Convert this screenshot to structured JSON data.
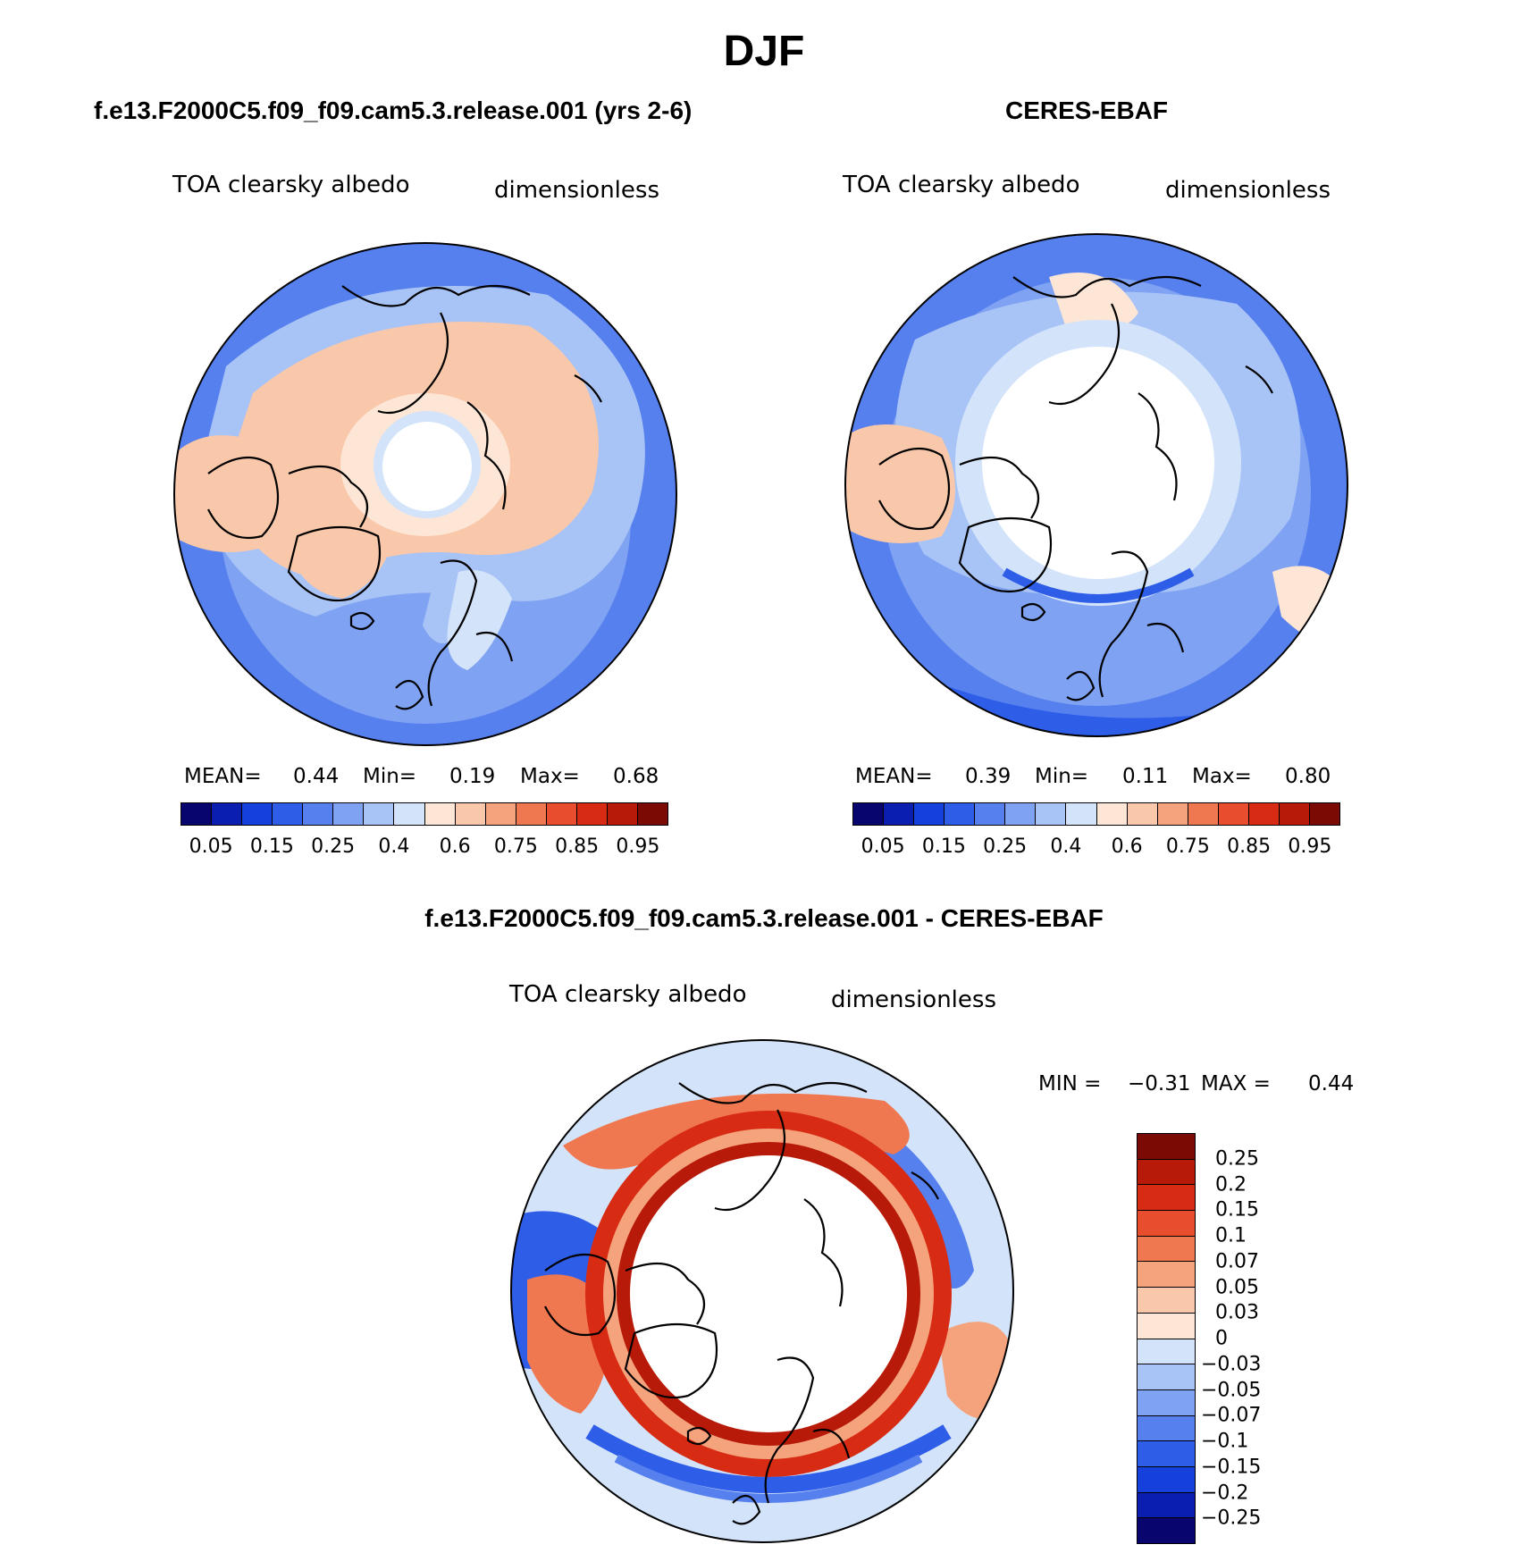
{
  "title": "DJF",
  "panels": {
    "model": {
      "heading": "f.e13.F2000C5.f09_f09.cam5.3.release.001 (yrs 2-6)",
      "var_label": "TOA clearsky albedo",
      "units": "dimensionless",
      "mean_label": "MEAN=",
      "mean": "0.44",
      "min_label": "Min=",
      "min": "0.19",
      "max_label": "Max=",
      "max": "0.68"
    },
    "obs": {
      "heading": "CERES-EBAF",
      "var_label": "TOA clearsky albedo",
      "units": "dimensionless",
      "mean_label": "MEAN=",
      "mean": "0.39",
      "min_label": "Min=",
      "min": "0.11",
      "max_label": "Max=",
      "max": "0.80"
    },
    "diff": {
      "heading": "f.e13.F2000C5.f09_f09.cam5.3.release.001 - CERES-EBAF",
      "var_label": "TOA clearsky albedo",
      "units": "dimensionless",
      "min_label": "MIN =",
      "min": "−0.31",
      "max_label": "MAX =",
      "max": "0.44"
    }
  },
  "abs_colorbar": {
    "colors": [
      "#08066e",
      "#0a1fb0",
      "#1540dc",
      "#2e5de8",
      "#5680ee",
      "#7fa2f2",
      "#a8c3f6",
      "#d2e3fa",
      "#fde6d6",
      "#f9c8aa",
      "#f5a37c",
      "#f07850",
      "#e84e2e",
      "#d82b14",
      "#b81a0a",
      "#7c0a04"
    ],
    "labels": [
      "0.05",
      "0.15",
      "0.25",
      "0.4",
      "0.6",
      "0.75",
      "0.85",
      "0.95"
    ]
  },
  "diff_colorbar": {
    "colors": [
      "#7c0a04",
      "#b81a0a",
      "#d82b14",
      "#e84e2e",
      "#f07850",
      "#f5a37c",
      "#f9c8aa",
      "#fde6d6",
      "#d2e3fa",
      "#a8c3f6",
      "#7fa2f2",
      "#5680ee",
      "#2e5de8",
      "#1540dc",
      "#0a1fb0",
      "#08066e"
    ],
    "labels": [
      "0.25",
      "0.2",
      "0.15",
      "0.1",
      "0.07",
      "0.05",
      "0.03",
      "0",
      "−0.03",
      "−0.05",
      "−0.07",
      "−0.1",
      "−0.15",
      "−0.2",
      "−0.25"
    ]
  }
}
